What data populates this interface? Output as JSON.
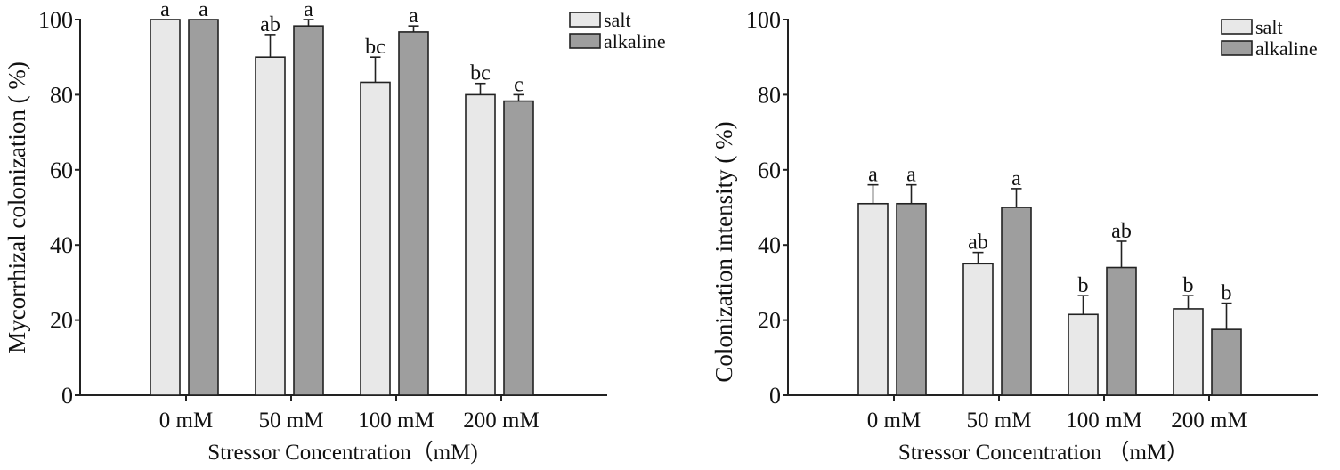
{
  "colors": {
    "salt": "#e8e8e8",
    "alkaline": "#9e9e9e",
    "axis": "#222222"
  },
  "chart_data": [
    {
      "type": "bar",
      "title": "",
      "xlabel": "Stressor Concentration（mM)",
      "ylabel": "Mycorrhizal colonization ( %)",
      "ylim": [
        0,
        100
      ],
      "yticks": [
        "0",
        "20",
        "40",
        "60",
        "80",
        "100"
      ],
      "categories": [
        "0 mM",
        "50 mM",
        "100 mM",
        "200 mM"
      ],
      "legend": "top-right",
      "grid": false,
      "series": [
        {
          "name": "salt",
          "values": [
            100,
            90,
            83.3,
            80
          ],
          "errors": [
            0,
            6,
            6.7,
            3
          ],
          "letters": [
            "a",
            "ab",
            "bc",
            "bc"
          ]
        },
        {
          "name": "alkaline",
          "values": [
            100,
            98.3,
            96.7,
            78.3
          ],
          "errors": [
            0,
            1.7,
            1.6,
            1.7
          ],
          "letters": [
            "a",
            "a",
            "a",
            "c"
          ]
        }
      ]
    },
    {
      "type": "bar",
      "title": "",
      "xlabel": "Stressor Concentration （mM）",
      "ylabel": "Colonization intensity ( %)",
      "ylim": [
        0,
        100
      ],
      "yticks": [
        "0",
        "20",
        "40",
        "60",
        "80",
        "100"
      ],
      "categories": [
        "0 mM",
        "50 mM",
        "100 mM",
        "200 mM"
      ],
      "legend": "top-right",
      "grid": false,
      "series": [
        {
          "name": "salt",
          "values": [
            51,
            35,
            21.5,
            23
          ],
          "errors": [
            5,
            3,
            5,
            3.5
          ],
          "letters": [
            "a",
            "ab",
            "b",
            "b"
          ]
        },
        {
          "name": "alkaline",
          "values": [
            51,
            50,
            34,
            17.5
          ],
          "errors": [
            5,
            5,
            7,
            7
          ],
          "letters": [
            "a",
            "a",
            "ab",
            "b"
          ]
        }
      ]
    }
  ]
}
